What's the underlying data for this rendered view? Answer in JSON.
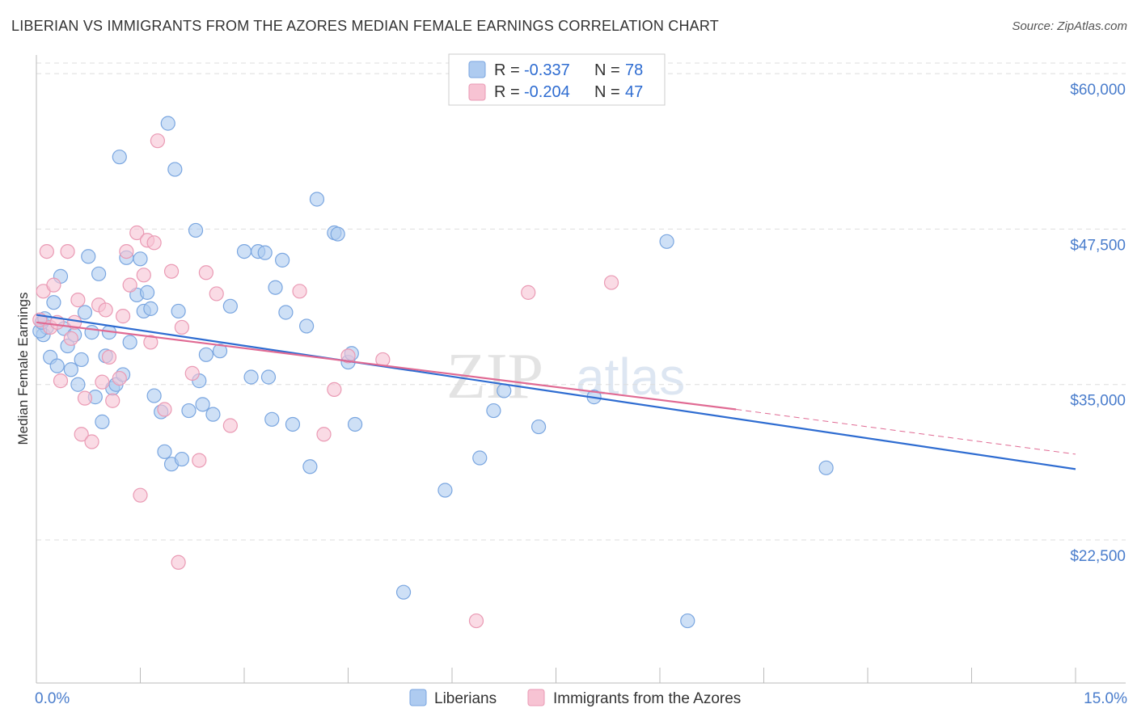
{
  "title": "LIBERIAN VS IMMIGRANTS FROM THE AZORES MEDIAN FEMALE EARNINGS CORRELATION CHART",
  "source": "Source: ZipAtlas.com",
  "watermark": {
    "zip": "ZIP",
    "atlas": "atlas"
  },
  "colors": {
    "blue_fill": "#aecbf0",
    "blue_stroke": "#7aa6e0",
    "blue_line": "#2e6cd1",
    "pink_fill": "#f7c3d3",
    "pink_stroke": "#ea9ab4",
    "pink_line": "#e06a93",
    "grid": "#dddddd",
    "tick_text": "#4a7dcc"
  },
  "chart_data": {
    "type": "scatter",
    "title": "LIBERIAN VS IMMIGRANTS FROM THE AZORES MEDIAN FEMALE EARNINGS CORRELATION CHART",
    "xlabel": "",
    "ylabel": "Median Female Earnings",
    "xlim": [
      0,
      15
    ],
    "ylim": [
      11000,
      61500
    ],
    "x_tick_labels": [
      {
        "value": 0,
        "label": "0.0%"
      },
      {
        "value": 15,
        "label": "15.0%"
      }
    ],
    "y_ticks": [
      {
        "value": 60000,
        "label": "$60,000"
      },
      {
        "value": 47500,
        "label": "$47,500"
      },
      {
        "value": 35000,
        "label": "$35,000"
      },
      {
        "value": 22500,
        "label": "$22,500"
      }
    ],
    "legend": [
      {
        "r_label": "R =",
        "r": "-0.337",
        "n_label": "N =",
        "n": "78"
      },
      {
        "r_label": "R =",
        "r": "-0.204",
        "n_label": "N =",
        "n": "47"
      }
    ],
    "series": [
      {
        "name": "Liberians",
        "color": "blue",
        "trend": {
          "x0": 0.0,
          "y0": 40600,
          "x1": 15.0,
          "y1": 28200,
          "dashed_to": null
        },
        "points": [
          [
            0.1,
            39000
          ],
          [
            0.15,
            39600
          ],
          [
            0.2,
            37200
          ],
          [
            0.25,
            41600
          ],
          [
            0.3,
            36500
          ],
          [
            0.35,
            43700
          ],
          [
            0.4,
            39500
          ],
          [
            0.45,
            38100
          ],
          [
            0.5,
            36200
          ],
          [
            0.55,
            39000
          ],
          [
            0.6,
            35000
          ],
          [
            0.65,
            37000
          ],
          [
            0.7,
            40800
          ],
          [
            0.75,
            45300
          ],
          [
            0.8,
            39200
          ],
          [
            0.85,
            34000
          ],
          [
            0.9,
            43900
          ],
          [
            0.95,
            32000
          ],
          [
            1.0,
            37300
          ],
          [
            1.05,
            39200
          ],
          [
            1.1,
            34700
          ],
          [
            1.15,
            35000
          ],
          [
            1.2,
            53300
          ],
          [
            1.25,
            35800
          ],
          [
            1.3,
            45200
          ],
          [
            1.35,
            38400
          ],
          [
            1.45,
            42200
          ],
          [
            1.5,
            45100
          ],
          [
            1.55,
            40900
          ],
          [
            1.6,
            42400
          ],
          [
            1.65,
            41100
          ],
          [
            1.7,
            34100
          ],
          [
            1.8,
            32800
          ],
          [
            1.85,
            29600
          ],
          [
            1.9,
            56000
          ],
          [
            1.95,
            28600
          ],
          [
            2.0,
            52300
          ],
          [
            2.05,
            40900
          ],
          [
            2.1,
            29000
          ],
          [
            2.2,
            32900
          ],
          [
            2.3,
            47400
          ],
          [
            2.35,
            35300
          ],
          [
            2.4,
            33400
          ],
          [
            2.45,
            37400
          ],
          [
            2.55,
            32600
          ],
          [
            2.65,
            37700
          ],
          [
            2.8,
            41300
          ],
          [
            3.0,
            45700
          ],
          [
            3.1,
            35600
          ],
          [
            3.2,
            45700
          ],
          [
            3.3,
            45600
          ],
          [
            3.35,
            35600
          ],
          [
            3.4,
            32200
          ],
          [
            3.45,
            42800
          ],
          [
            3.55,
            45000
          ],
          [
            3.6,
            40800
          ],
          [
            3.7,
            31800
          ],
          [
            3.9,
            39700
          ],
          [
            3.95,
            28400
          ],
          [
            4.05,
            49900
          ],
          [
            4.3,
            47200
          ],
          [
            4.35,
            47100
          ],
          [
            4.5,
            36800
          ],
          [
            4.55,
            37500
          ],
          [
            4.6,
            31800
          ],
          [
            5.3,
            18300
          ],
          [
            5.9,
            26500
          ],
          [
            6.4,
            29100
          ],
          [
            6.6,
            32900
          ],
          [
            6.75,
            34500
          ],
          [
            7.25,
            31600
          ],
          [
            8.05,
            34000
          ],
          [
            9.1,
            46500
          ],
          [
            9.4,
            16000
          ],
          [
            11.4,
            28300
          ],
          [
            0.05,
            39300
          ],
          [
            0.08,
            40000
          ],
          [
            0.12,
            40300
          ]
        ]
      },
      {
        "name": "Immigrants from the Azores",
        "color": "pink",
        "trend": {
          "x0": 0.0,
          "y0": 40000,
          "x1": 10.1,
          "y1": 33000,
          "dashed_to": {
            "x": 15.0,
            "y": 29400
          }
        },
        "points": [
          [
            0.05,
            40200
          ],
          [
            0.1,
            42500
          ],
          [
            0.15,
            45700
          ],
          [
            0.2,
            39600
          ],
          [
            0.25,
            43000
          ],
          [
            0.3,
            40000
          ],
          [
            0.35,
            35300
          ],
          [
            0.45,
            45700
          ],
          [
            0.55,
            40000
          ],
          [
            0.6,
            41800
          ],
          [
            0.65,
            31000
          ],
          [
            0.7,
            33900
          ],
          [
            0.8,
            30400
          ],
          [
            0.9,
            41400
          ],
          [
            0.95,
            35200
          ],
          [
            1.0,
            41000
          ],
          [
            1.05,
            37200
          ],
          [
            1.1,
            33700
          ],
          [
            1.2,
            35500
          ],
          [
            1.3,
            45700
          ],
          [
            1.35,
            43000
          ],
          [
            1.45,
            47200
          ],
          [
            1.5,
            26100
          ],
          [
            1.55,
            43800
          ],
          [
            1.6,
            46600
          ],
          [
            1.65,
            38400
          ],
          [
            1.7,
            46400
          ],
          [
            1.75,
            54600
          ],
          [
            1.85,
            33000
          ],
          [
            1.95,
            44100
          ],
          [
            2.05,
            20700
          ],
          [
            2.1,
            39600
          ],
          [
            2.25,
            35900
          ],
          [
            2.35,
            28900
          ],
          [
            2.45,
            44000
          ],
          [
            2.6,
            42300
          ],
          [
            2.8,
            31700
          ],
          [
            3.8,
            42500
          ],
          [
            4.15,
            31000
          ],
          [
            4.3,
            34600
          ],
          [
            4.5,
            37300
          ],
          [
            5.0,
            37000
          ],
          [
            6.35,
            16000
          ],
          [
            7.1,
            42400
          ],
          [
            8.3,
            43200
          ],
          [
            1.25,
            40500
          ],
          [
            0.5,
            38700
          ]
        ]
      }
    ]
  },
  "bottom_legend": [
    "Liberians",
    "Immigrants from the Azores"
  ]
}
